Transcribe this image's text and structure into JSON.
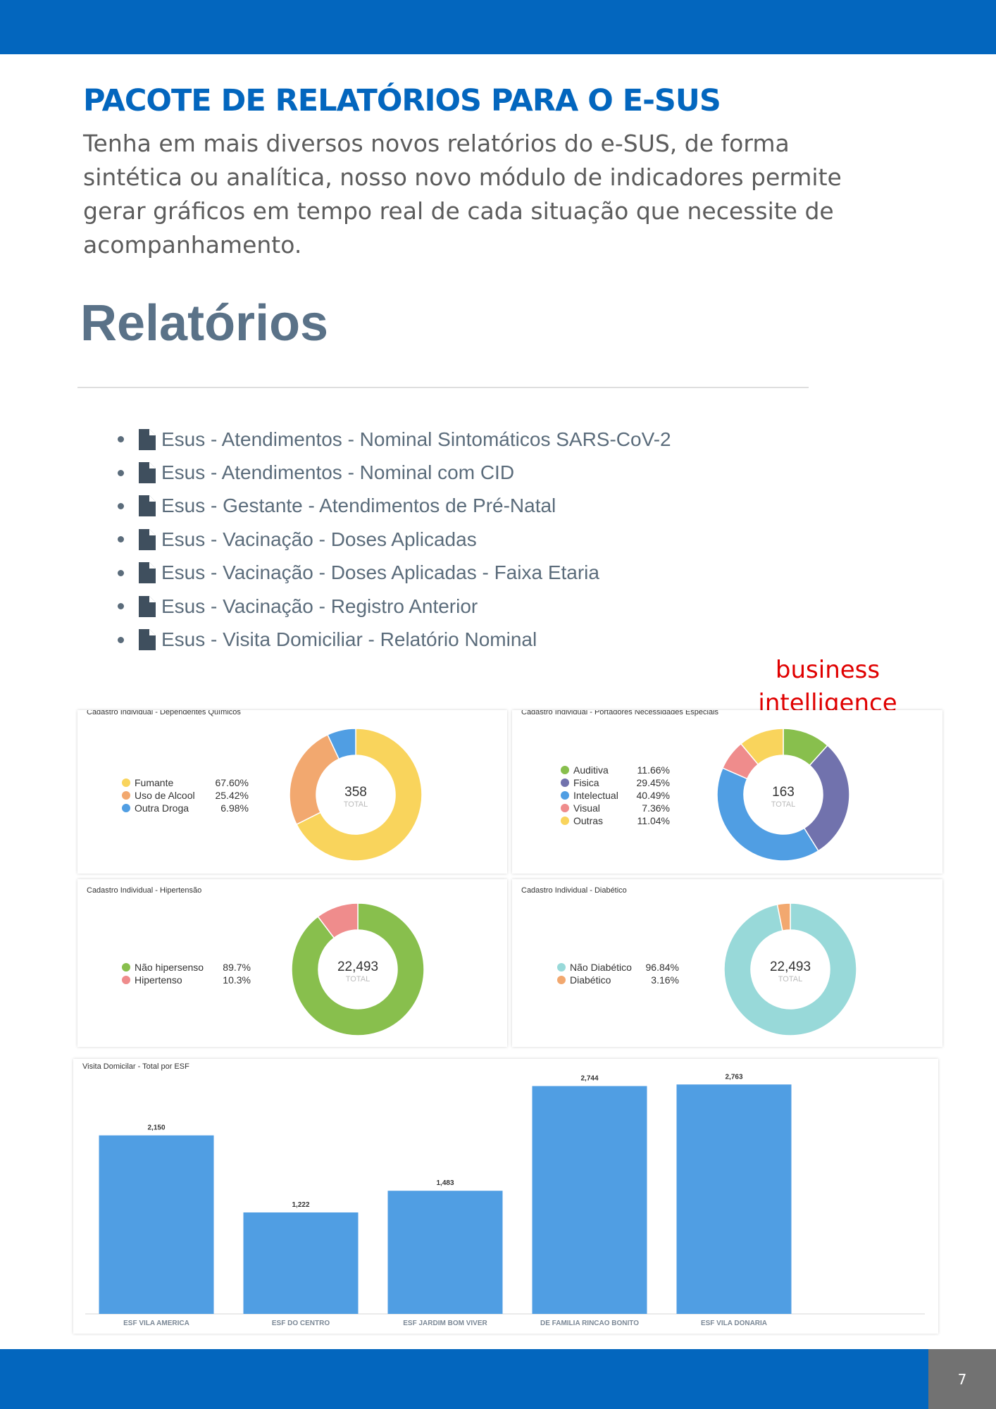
{
  "header": {
    "title": "PACOTE DE RELATÓRIOS PARA O E-SUS",
    "intro": "Tenha em mais diversos novos relatórios do e-SUS, de forma sintética ou analítica, nosso novo módulo de indicadores permite gerar gráficos em tempo real de cada situação que necessite de acompanhamento."
  },
  "reports": {
    "heading": "Relatórios",
    "items": [
      {
        "label": "Esus - Atendimentos - Nominal Sintomáticos SARS-CoV-2",
        "icon": "file-icon"
      },
      {
        "label": "Esus - Atendimentos - Nominal com CID",
        "icon": "file-icon"
      },
      {
        "label": "Esus - Gestante - Atendimentos de Pré-Natal",
        "icon": "file-icon"
      },
      {
        "label": "Esus - Vacinação - Doses Aplicadas",
        "icon": "file-icon"
      },
      {
        "label": "Esus - Vacinação - Doses Aplicadas - Faixa Etaria",
        "icon": "file-icon"
      },
      {
        "label": "Esus - Vacinação - Registro Anterior",
        "icon": "file-icon"
      },
      {
        "label": "Esus - Visita Domiciliar - Relatório Nominal",
        "icon": "file-icon"
      }
    ]
  },
  "bi_label": "business intelligence",
  "colors": {
    "brand": "#0366be",
    "page_number_bg": "#727272",
    "bi_text": "#e00000",
    "bar": "#509ee3"
  },
  "chart_data": [
    {
      "type": "pie",
      "title": "Cadastro Individual - Dependentes Químicos",
      "total": "358",
      "total_label": "TOTAL",
      "slices": [
        {
          "name": "Fumante",
          "value": 67.6,
          "label": "67.60%",
          "color": "#f9d45c"
        },
        {
          "name": "Uso de Alcool",
          "value": 25.42,
          "label": "25.42%",
          "color": "#f2a86f"
        },
        {
          "name": "Outra Droga",
          "value": 6.98,
          "label": "6.98%",
          "color": "#509ee3"
        }
      ]
    },
    {
      "type": "pie",
      "title": "Cadastro Individual - Portadores Necessidades Especiais",
      "total": "163",
      "total_label": "TOTAL",
      "slices": [
        {
          "name": "Auditiva",
          "value": 11.66,
          "label": "11.66%",
          "color": "#88bf4d"
        },
        {
          "name": "Fisica",
          "value": 29.45,
          "label": "29.45%",
          "color": "#7172ad"
        },
        {
          "name": "Intelectual",
          "value": 40.49,
          "label": "40.49%",
          "color": "#509ee3"
        },
        {
          "name": "Visual",
          "value": 7.36,
          "label": "7.36%",
          "color": "#ef8c8c"
        },
        {
          "name": "Outras",
          "value": 11.04,
          "label": "11.04%",
          "color": "#f9d45c"
        }
      ]
    },
    {
      "type": "pie",
      "title": "Cadastro Individual - Hipertensão",
      "total": "22,493",
      "total_label": "TOTAL",
      "slices": [
        {
          "name": "Não hipersenso",
          "value": 89.7,
          "label": "89.7%",
          "color": "#88bf4d"
        },
        {
          "name": "Hipertenso",
          "value": 10.3,
          "label": "10.3%",
          "color": "#ef8c8c"
        }
      ]
    },
    {
      "type": "pie",
      "title": "Cadastro Individual - Diabético",
      "total": "22,493",
      "total_label": "TOTAL",
      "slices": [
        {
          "name": "Não Diabético",
          "value": 96.84,
          "label": "96.84%",
          "color": "#98d9d9"
        },
        {
          "name": "Diabético",
          "value": 3.16,
          "label": "3.16%",
          "color": "#f2a86f"
        }
      ]
    },
    {
      "type": "bar",
      "title": "Visita Domicilar - Total por ESF",
      "categories": [
        "ESF VILA AMERICA",
        "ESF DO CENTRO",
        "ESF JARDIM BOM VIVER",
        "DE FAMILIA RINCAO BONITO",
        "ESF VILA DONARIA"
      ],
      "values": [
        2150,
        1222,
        1483,
        2744,
        2763
      ],
      "value_labels": [
        "2,150",
        "1,222",
        "1,483",
        "2,744",
        "2,763"
      ],
      "ylim": [
        0,
        2800
      ]
    }
  ],
  "footer": {
    "page_number": "7"
  }
}
